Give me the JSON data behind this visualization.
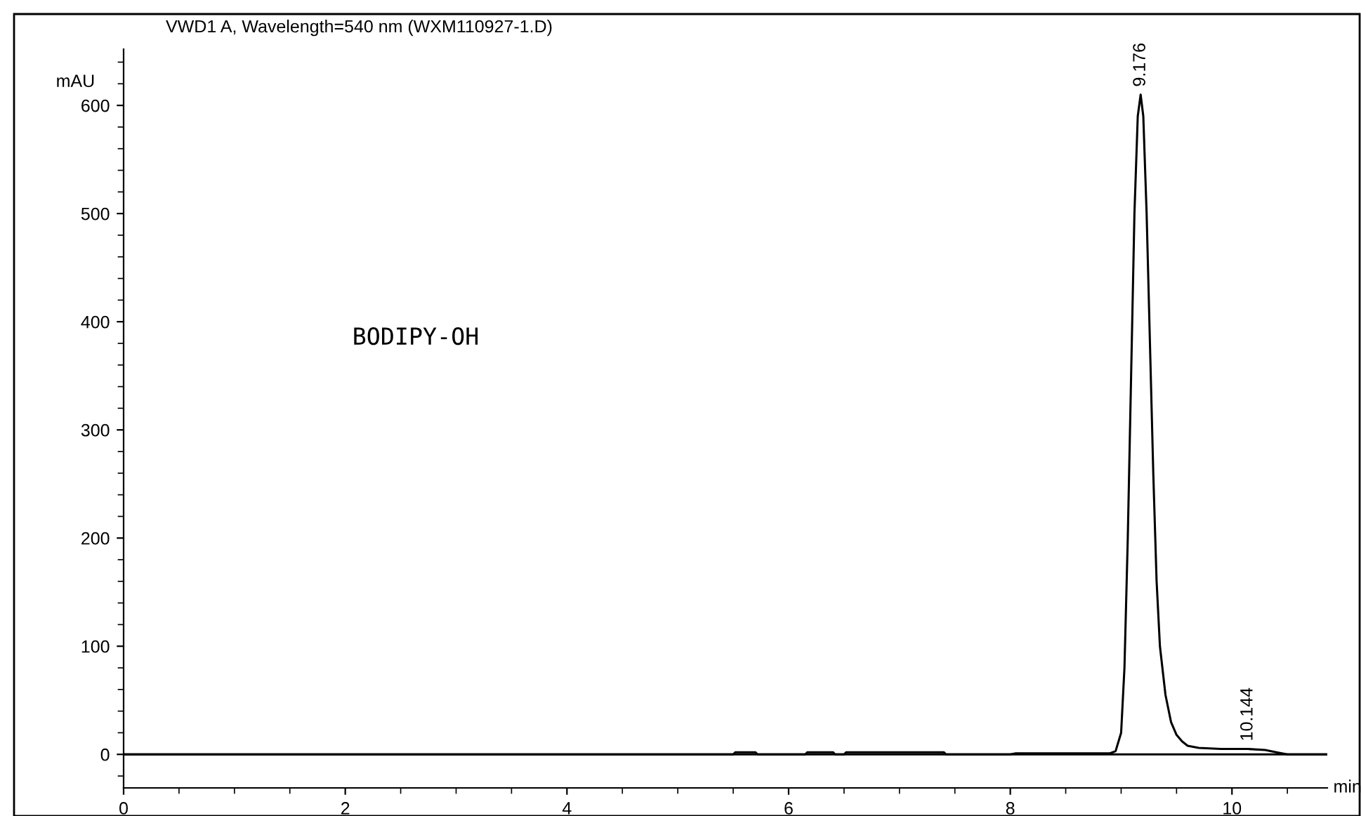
{
  "chart_data": {
    "type": "line",
    "title": "VWD1 A, Wavelength=540 nm (WXM110927-1.D)",
    "xlabel": "min",
    "ylabel": "mAU",
    "x": [
      0,
      5.5,
      5.52,
      5.7,
      5.72,
      6.15,
      6.17,
      6.4,
      6.42,
      6.5,
      6.52,
      7.4,
      7.42,
      8.0,
      8.05,
      8.6,
      8.9,
      8.95,
      9.0,
      9.03,
      9.06,
      9.09,
      9.12,
      9.15,
      9.176,
      9.2,
      9.23,
      9.26,
      9.29,
      9.32,
      9.35,
      9.4,
      9.45,
      9.5,
      9.55,
      9.6,
      9.7,
      9.9,
      10.144,
      10.3,
      10.4,
      10.5,
      10.86
    ],
    "series": [
      {
        "color": "#000000",
        "values": [
          0,
          0,
          2,
          2,
          0,
          0,
          2,
          2,
          0,
          0,
          2,
          2,
          0,
          0,
          1,
          1,
          1,
          3,
          20,
          80,
          200,
          350,
          500,
          590,
          610,
          590,
          500,
          380,
          260,
          160,
          100,
          55,
          30,
          18,
          12,
          8,
          6,
          5,
          5,
          4,
          2,
          0,
          0
        ]
      }
    ],
    "xlim": [
      0,
      10.86
    ],
    "ylim": [
      -31,
      652
    ],
    "xticks": [
      0,
      2,
      4,
      6,
      8,
      10
    ],
    "yticks": [
      0,
      100,
      200,
      300,
      400,
      500,
      600
    ],
    "ref_lines": [
      {
        "axis": "y",
        "value": 0,
        "color": "#000000",
        "line_style": "solid"
      }
    ],
    "annotations": [
      {
        "text": "9.176",
        "x": 9.176,
        "y": 610
      },
      {
        "text": "10.144",
        "x": 10.144,
        "y": 5
      },
      "BODIPY-OH"
    ],
    "grid": false,
    "legend": false,
    "marker": "none",
    "line_style": "solid"
  }
}
